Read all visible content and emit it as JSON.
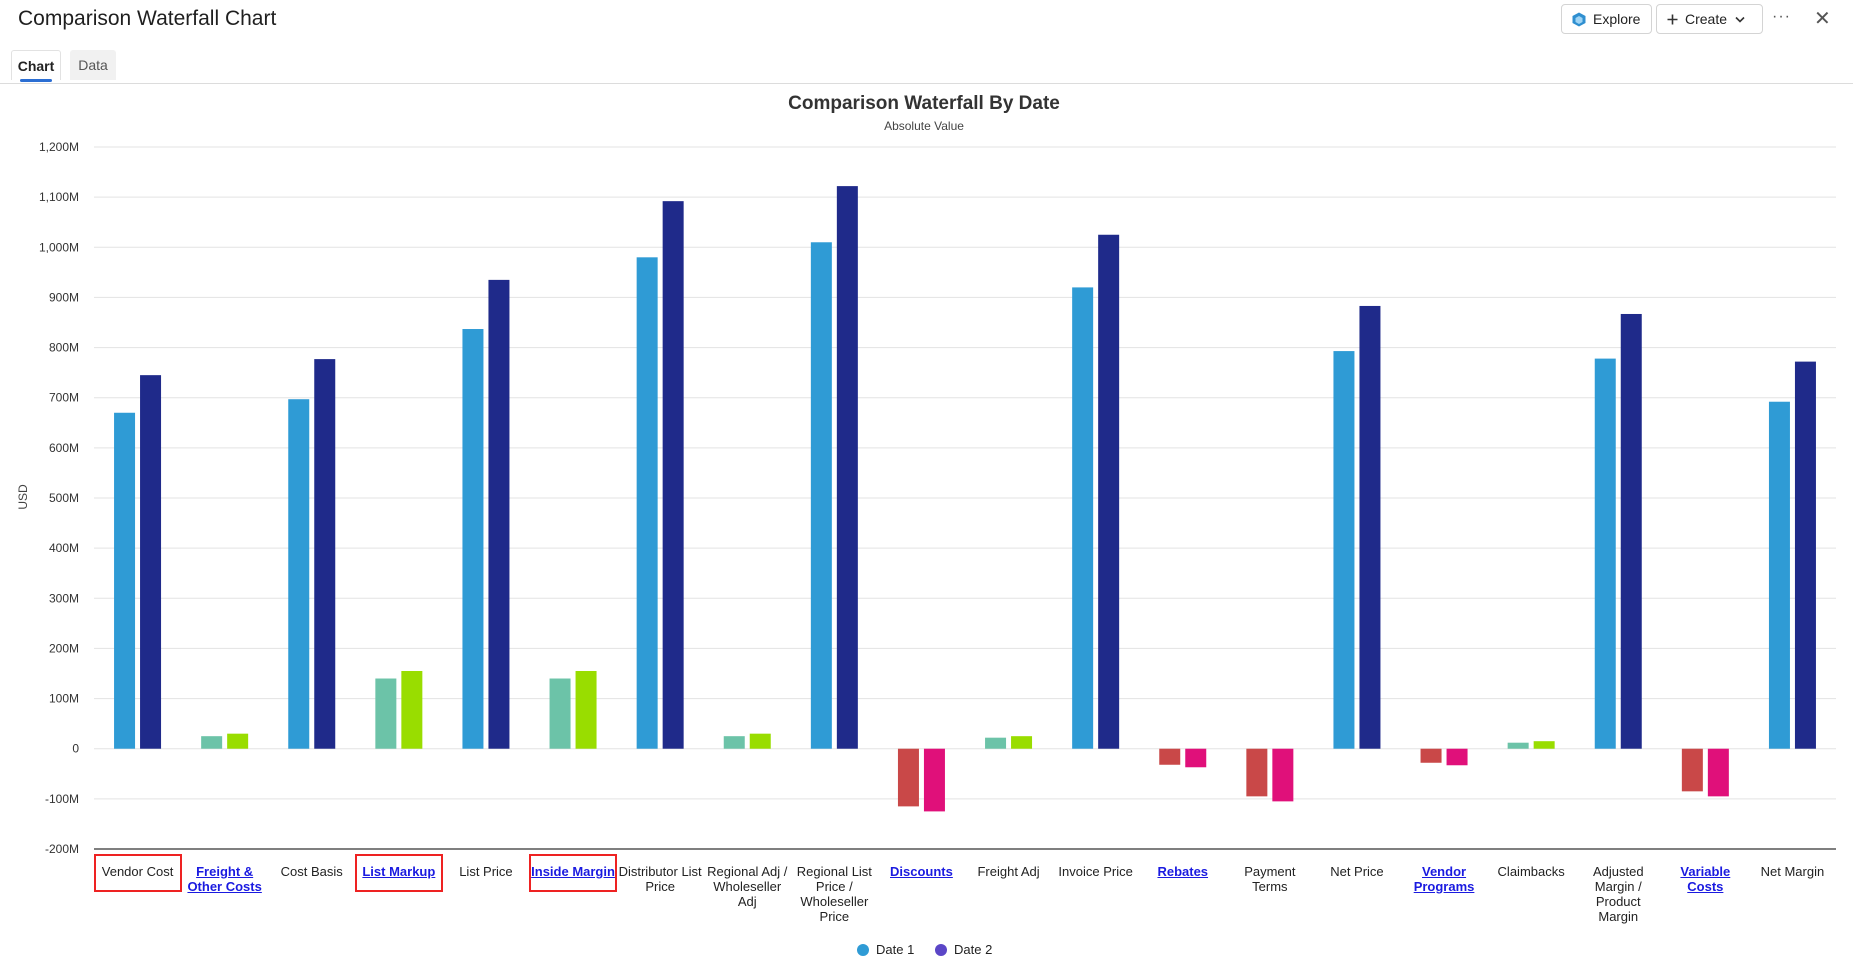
{
  "window": {
    "title": "Comparison Waterfall Chart"
  },
  "toolbar": {
    "explore_label": "Explore",
    "create_label": "Create",
    "more_label": "···",
    "close_label": "✕"
  },
  "tabs": [
    {
      "label": "Chart",
      "active": true
    },
    {
      "label": "Data",
      "active": false
    }
  ],
  "colors": {
    "date1": "#2f9bd5",
    "date2": "#1f2a8a",
    "inc1": "#6cc3a8",
    "inc2": "#99dd00",
    "dec1": "#c94848",
    "dec2": "#e0107a",
    "link": "#1a1ae0",
    "highlight": "#ee2222"
  },
  "chart_data": {
    "type": "bar",
    "title": "Comparison Waterfall By Date",
    "subtitle": "Absolute Value",
    "ylabel": "USD",
    "xlabel": "",
    "ylim": [
      -200,
      1200
    ],
    "ytick_values": [
      -200,
      -100,
      0,
      100,
      200,
      300,
      400,
      500,
      600,
      700,
      800,
      900,
      1000,
      1100,
      1200
    ],
    "ytick_labels": [
      "-200M",
      "-100M",
      "0",
      "100M",
      "200M",
      "300M",
      "400M",
      "500M",
      "600M",
      "700M",
      "800M",
      "900M",
      "1,000M",
      "1,100M",
      "1,200M"
    ],
    "grid": true,
    "legend_position": "bottom-center",
    "categories": [
      {
        "label": "Vendor Cost",
        "link": false,
        "highlighted": true,
        "kind": "total"
      },
      {
        "label": "Freight & Other Costs",
        "link": true,
        "highlighted": false,
        "kind": "increase"
      },
      {
        "label": "Cost Basis",
        "link": false,
        "highlighted": false,
        "kind": "total"
      },
      {
        "label": "List Markup",
        "link": true,
        "highlighted": true,
        "kind": "increase"
      },
      {
        "label": "List Price",
        "link": false,
        "highlighted": false,
        "kind": "total"
      },
      {
        "label": "Inside Margin",
        "link": true,
        "highlighted": true,
        "kind": "increase"
      },
      {
        "label": "Distributor List Price",
        "link": false,
        "highlighted": false,
        "kind": "total"
      },
      {
        "label": "Regional Adj / Wholeseller Adj",
        "link": false,
        "highlighted": false,
        "kind": "increase"
      },
      {
        "label": "Regional List Price / Wholeseller Price",
        "link": false,
        "highlighted": false,
        "kind": "total"
      },
      {
        "label": "Discounts",
        "link": true,
        "highlighted": false,
        "kind": "decrease"
      },
      {
        "label": "Freight Adj",
        "link": false,
        "highlighted": false,
        "kind": "increase"
      },
      {
        "label": "Invoice Price",
        "link": false,
        "highlighted": false,
        "kind": "total"
      },
      {
        "label": "Rebates",
        "link": true,
        "highlighted": false,
        "kind": "decrease"
      },
      {
        "label": "Payment Terms",
        "link": false,
        "highlighted": false,
        "kind": "decrease"
      },
      {
        "label": "Net Price",
        "link": false,
        "highlighted": false,
        "kind": "total"
      },
      {
        "label": "Vendor Programs",
        "link": true,
        "highlighted": false,
        "kind": "decrease"
      },
      {
        "label": "Claimbacks",
        "link": false,
        "highlighted": false,
        "kind": "increase"
      },
      {
        "label": "Adjusted Margin / Product Margin",
        "link": false,
        "highlighted": false,
        "kind": "total"
      },
      {
        "label": "Variable Costs",
        "link": true,
        "highlighted": false,
        "kind": "decrease"
      },
      {
        "label": "Net Margin",
        "link": false,
        "highlighted": false,
        "kind": "total"
      }
    ],
    "series": [
      {
        "name": "Date 1",
        "values": [
          670,
          25,
          697,
          140,
          837,
          140,
          980,
          25,
          1010,
          -115,
          22,
          920,
          -32,
          -95,
          793,
          -28,
          12,
          778,
          -85,
          692
        ]
      },
      {
        "name": "Date 2",
        "values": [
          745,
          30,
          777,
          155,
          935,
          155,
          1092,
          30,
          1122,
          -125,
          25,
          1025,
          -37,
          -105,
          883,
          -33,
          15,
          867,
          -95,
          772
        ]
      }
    ],
    "legend": [
      {
        "label": "Date 1",
        "color": "#2f9bd5"
      },
      {
        "label": "Date 2",
        "color": "#5b46c7"
      }
    ]
  }
}
